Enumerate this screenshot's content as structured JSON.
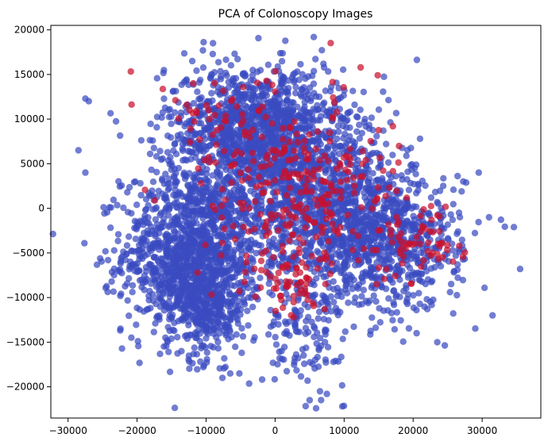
{
  "chart_data": {
    "type": "scatter",
    "title": "PCA of Colonoscopy Images",
    "xlabel": "",
    "ylabel": "",
    "xlim": [
      -32500,
      38500
    ],
    "ylim": [
      -23500,
      20500
    ],
    "xticks": [
      -30000,
      -20000,
      -10000,
      0,
      10000,
      20000,
      30000
    ],
    "yticks": [
      -20000,
      -15000,
      -10000,
      -5000,
      0,
      5000,
      10000,
      15000,
      20000
    ],
    "grid": false,
    "legend": "none",
    "colors": {
      "blue": "#3a4bc0",
      "red": "#c8102e"
    },
    "clusters": [
      {
        "name": "left",
        "cx": -12000,
        "cy": -5000,
        "sx": 5000,
        "sy": 4500,
        "n": 1200,
        "color": "blue"
      },
      {
        "name": "left-lower",
        "cx": -10000,
        "cy": -11000,
        "sx": 3000,
        "sy": 3000,
        "n": 300,
        "color": "blue"
      },
      {
        "name": "top-center",
        "cx": -3000,
        "cy": 9000,
        "sx": 6500,
        "sy": 3500,
        "n": 1100,
        "color": "blue"
      },
      {
        "name": "center",
        "cx": 3000,
        "cy": 2000,
        "sx": 7000,
        "sy": 4500,
        "n": 900,
        "color": "blue"
      },
      {
        "name": "right",
        "cx": 15000,
        "cy": -3500,
        "sx": 6000,
        "sy": 4000,
        "n": 900,
        "color": "blue"
      },
      {
        "name": "lower-tail",
        "cx": 4000,
        "cy": -14000,
        "sx": 3000,
        "sy": 3000,
        "n": 120,
        "color": "blue"
      },
      {
        "name": "red-center",
        "cx": 3000,
        "cy": 2000,
        "sx": 7000,
        "sy": 5000,
        "n": 280,
        "color": "red"
      },
      {
        "name": "red-right",
        "cx": 22000,
        "cy": -3500,
        "sx": 3000,
        "sy": 2500,
        "n": 60,
        "color": "red"
      },
      {
        "name": "red-top",
        "cx": -8000,
        "cy": 11000,
        "sx": 4000,
        "sy": 2000,
        "n": 40,
        "color": "red"
      },
      {
        "name": "red-lower",
        "cx": 3000,
        "cy": -8000,
        "sx": 3000,
        "sy": 2500,
        "n": 60,
        "color": "red"
      }
    ],
    "outliers": [
      {
        "x": -28500,
        "y": 6500,
        "color": "blue"
      },
      {
        "x": -27500,
        "y": 12300,
        "color": "blue"
      },
      {
        "x": -27000,
        "y": 12000,
        "color": "blue"
      },
      {
        "x": -27500,
        "y": 4000,
        "color": "blue"
      },
      {
        "x": 35500,
        "y": -6800,
        "color": "blue"
      },
      {
        "x": 31500,
        "y": -12000,
        "color": "blue"
      },
      {
        "x": 31000,
        "y": -1000,
        "color": "blue"
      },
      {
        "x": 29500,
        "y": 4000,
        "color": "blue"
      },
      {
        "x": 5000,
        "y": -21500,
        "color": "blue"
      },
      {
        "x": 7500,
        "y": -20800,
        "color": "blue"
      },
      {
        "x": 6500,
        "y": -20500,
        "color": "blue"
      },
      {
        "x": -6500,
        "y": -18500,
        "color": "blue"
      },
      {
        "x": -9000,
        "y": 18500,
        "color": "blue"
      },
      {
        "x": -12000,
        "y": 16500,
        "color": "blue"
      },
      {
        "x": 7000,
        "y": 16200,
        "color": "blue"
      },
      {
        "x": 21000,
        "y": 7800,
        "color": "blue"
      },
      {
        "x": 23500,
        "y": -15000,
        "color": "blue"
      },
      {
        "x": 20500,
        "y": -14000,
        "color": "blue"
      }
    ]
  }
}
